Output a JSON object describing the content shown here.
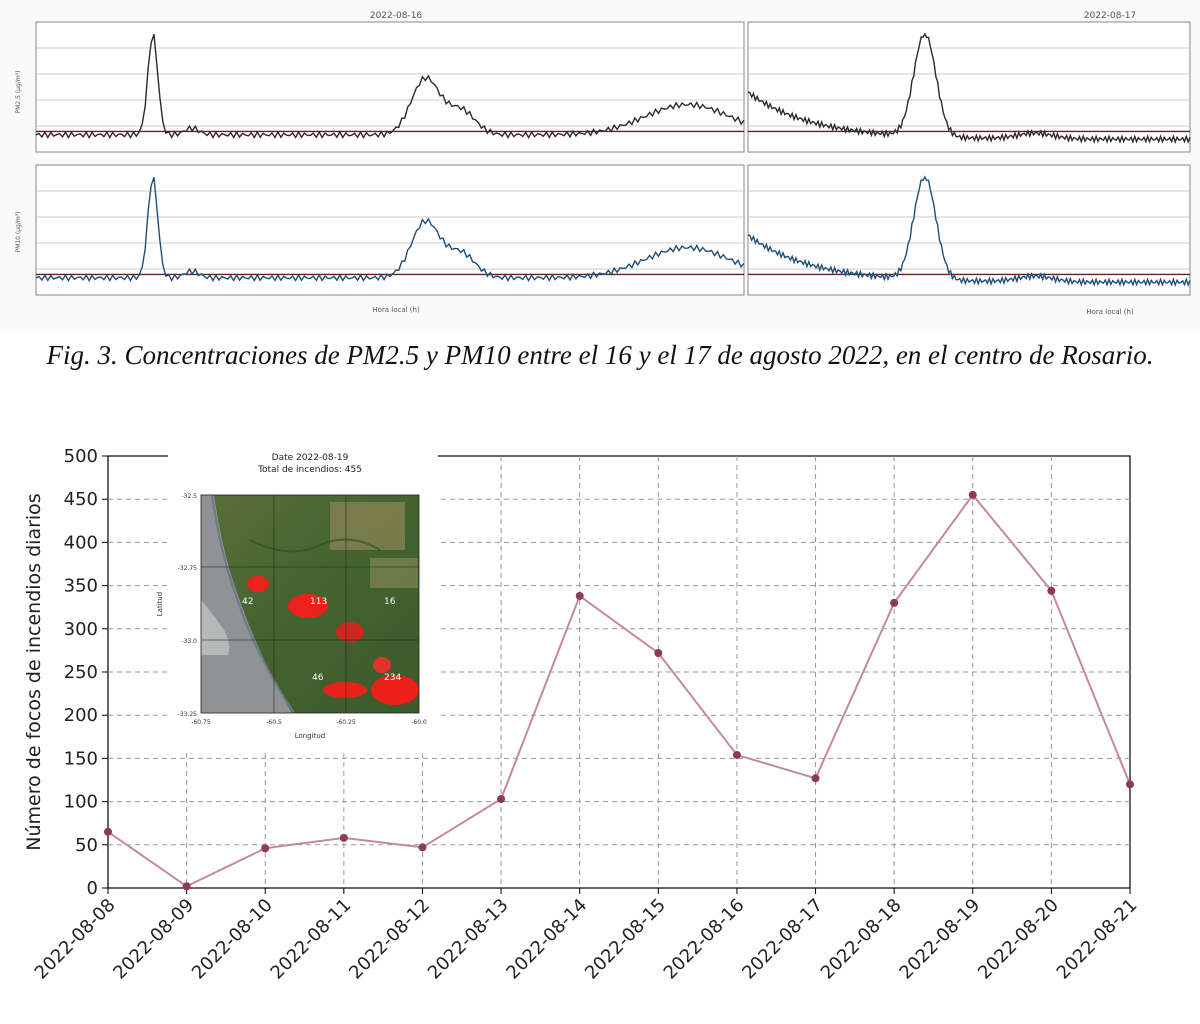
{
  "caption": "Fig. 3. Concentraciones de PM2.5 y PM10 entre el 16 y el 17 de agosto 2022, en el centro de Rosario.",
  "pm_figure": {
    "panel_titles": [
      "2022-08-16",
      "2022-08-17"
    ],
    "ylabels": [
      "PM2.5 (µg/m³)",
      "PM10 (µg/m³)"
    ],
    "xlabel": "Hora local (h)",
    "colors": {
      "pm25": "#2b2b2b",
      "pm10": "#1f4e79",
      "threshold": "#6b1d1d"
    }
  },
  "chart_data": [
    {
      "type": "line",
      "title": "",
      "xlabel": "",
      "ylabel": "Número de focos de incendios diarios",
      "categories": [
        "2022-08-08",
        "2022-08-09",
        "2022-08-10",
        "2022-08-11",
        "2022-08-12",
        "2022-08-13",
        "2022-08-14",
        "2022-08-15",
        "2022-08-16",
        "2022-08-17",
        "2022-08-18",
        "2022-08-19",
        "2022-08-20",
        "2022-08-21"
      ],
      "values": [
        65,
        2,
        46,
        58,
        47,
        103,
        338,
        272,
        154,
        127,
        330,
        455,
        344,
        120
      ],
      "ylim": [
        0,
        500
      ],
      "yticks": [
        0,
        50,
        100,
        150,
        200,
        250,
        300,
        350,
        400,
        450,
        500
      ],
      "grid": true,
      "line_color": "#c48a98",
      "marker_color": "#8e3a52"
    },
    {
      "type": "map",
      "title_line1": "Date 2022-08-19",
      "title_line2": "Total de incendios: 455",
      "xlabel": "Longitud",
      "ylabel": "Latitud",
      "xticks": [
        "-60.75",
        "-60.5",
        "-60.25",
        "-60.0"
      ],
      "yticks": [
        "-32.5",
        "-32.75",
        "-33.0",
        "-33.25"
      ],
      "cluster_labels": [
        "42",
        "113",
        "16",
        "46",
        "234"
      ]
    }
  ]
}
